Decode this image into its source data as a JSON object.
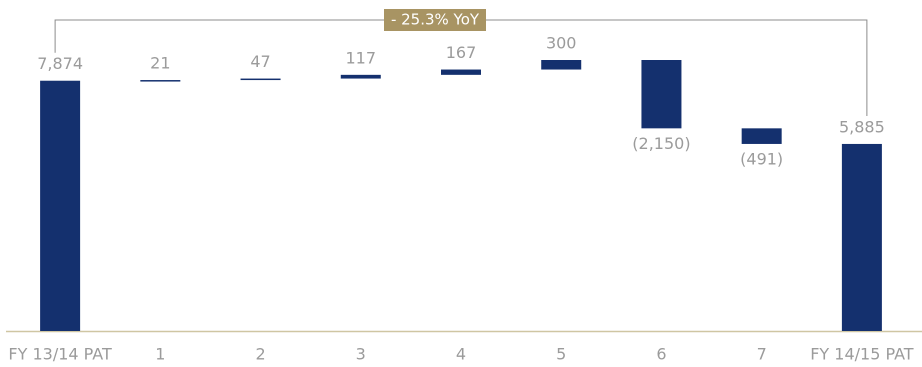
{
  "chart_data": {
    "type": "waterfall",
    "annotation": "- 25.3% YoY",
    "categories": [
      "FY 13/14 PAT",
      "1",
      "2",
      "3",
      "4",
      "5",
      "6",
      "7",
      "FY 14/15 PAT"
    ],
    "values": [
      7874,
      21,
      47,
      117,
      167,
      300,
      -2150,
      -491,
      5885
    ],
    "value_labels": [
      "7,874",
      "21",
      "47",
      "117",
      "167",
      "300",
      "(2,150)",
      "(491)",
      "5,885"
    ],
    "color": "#14306e"
  }
}
